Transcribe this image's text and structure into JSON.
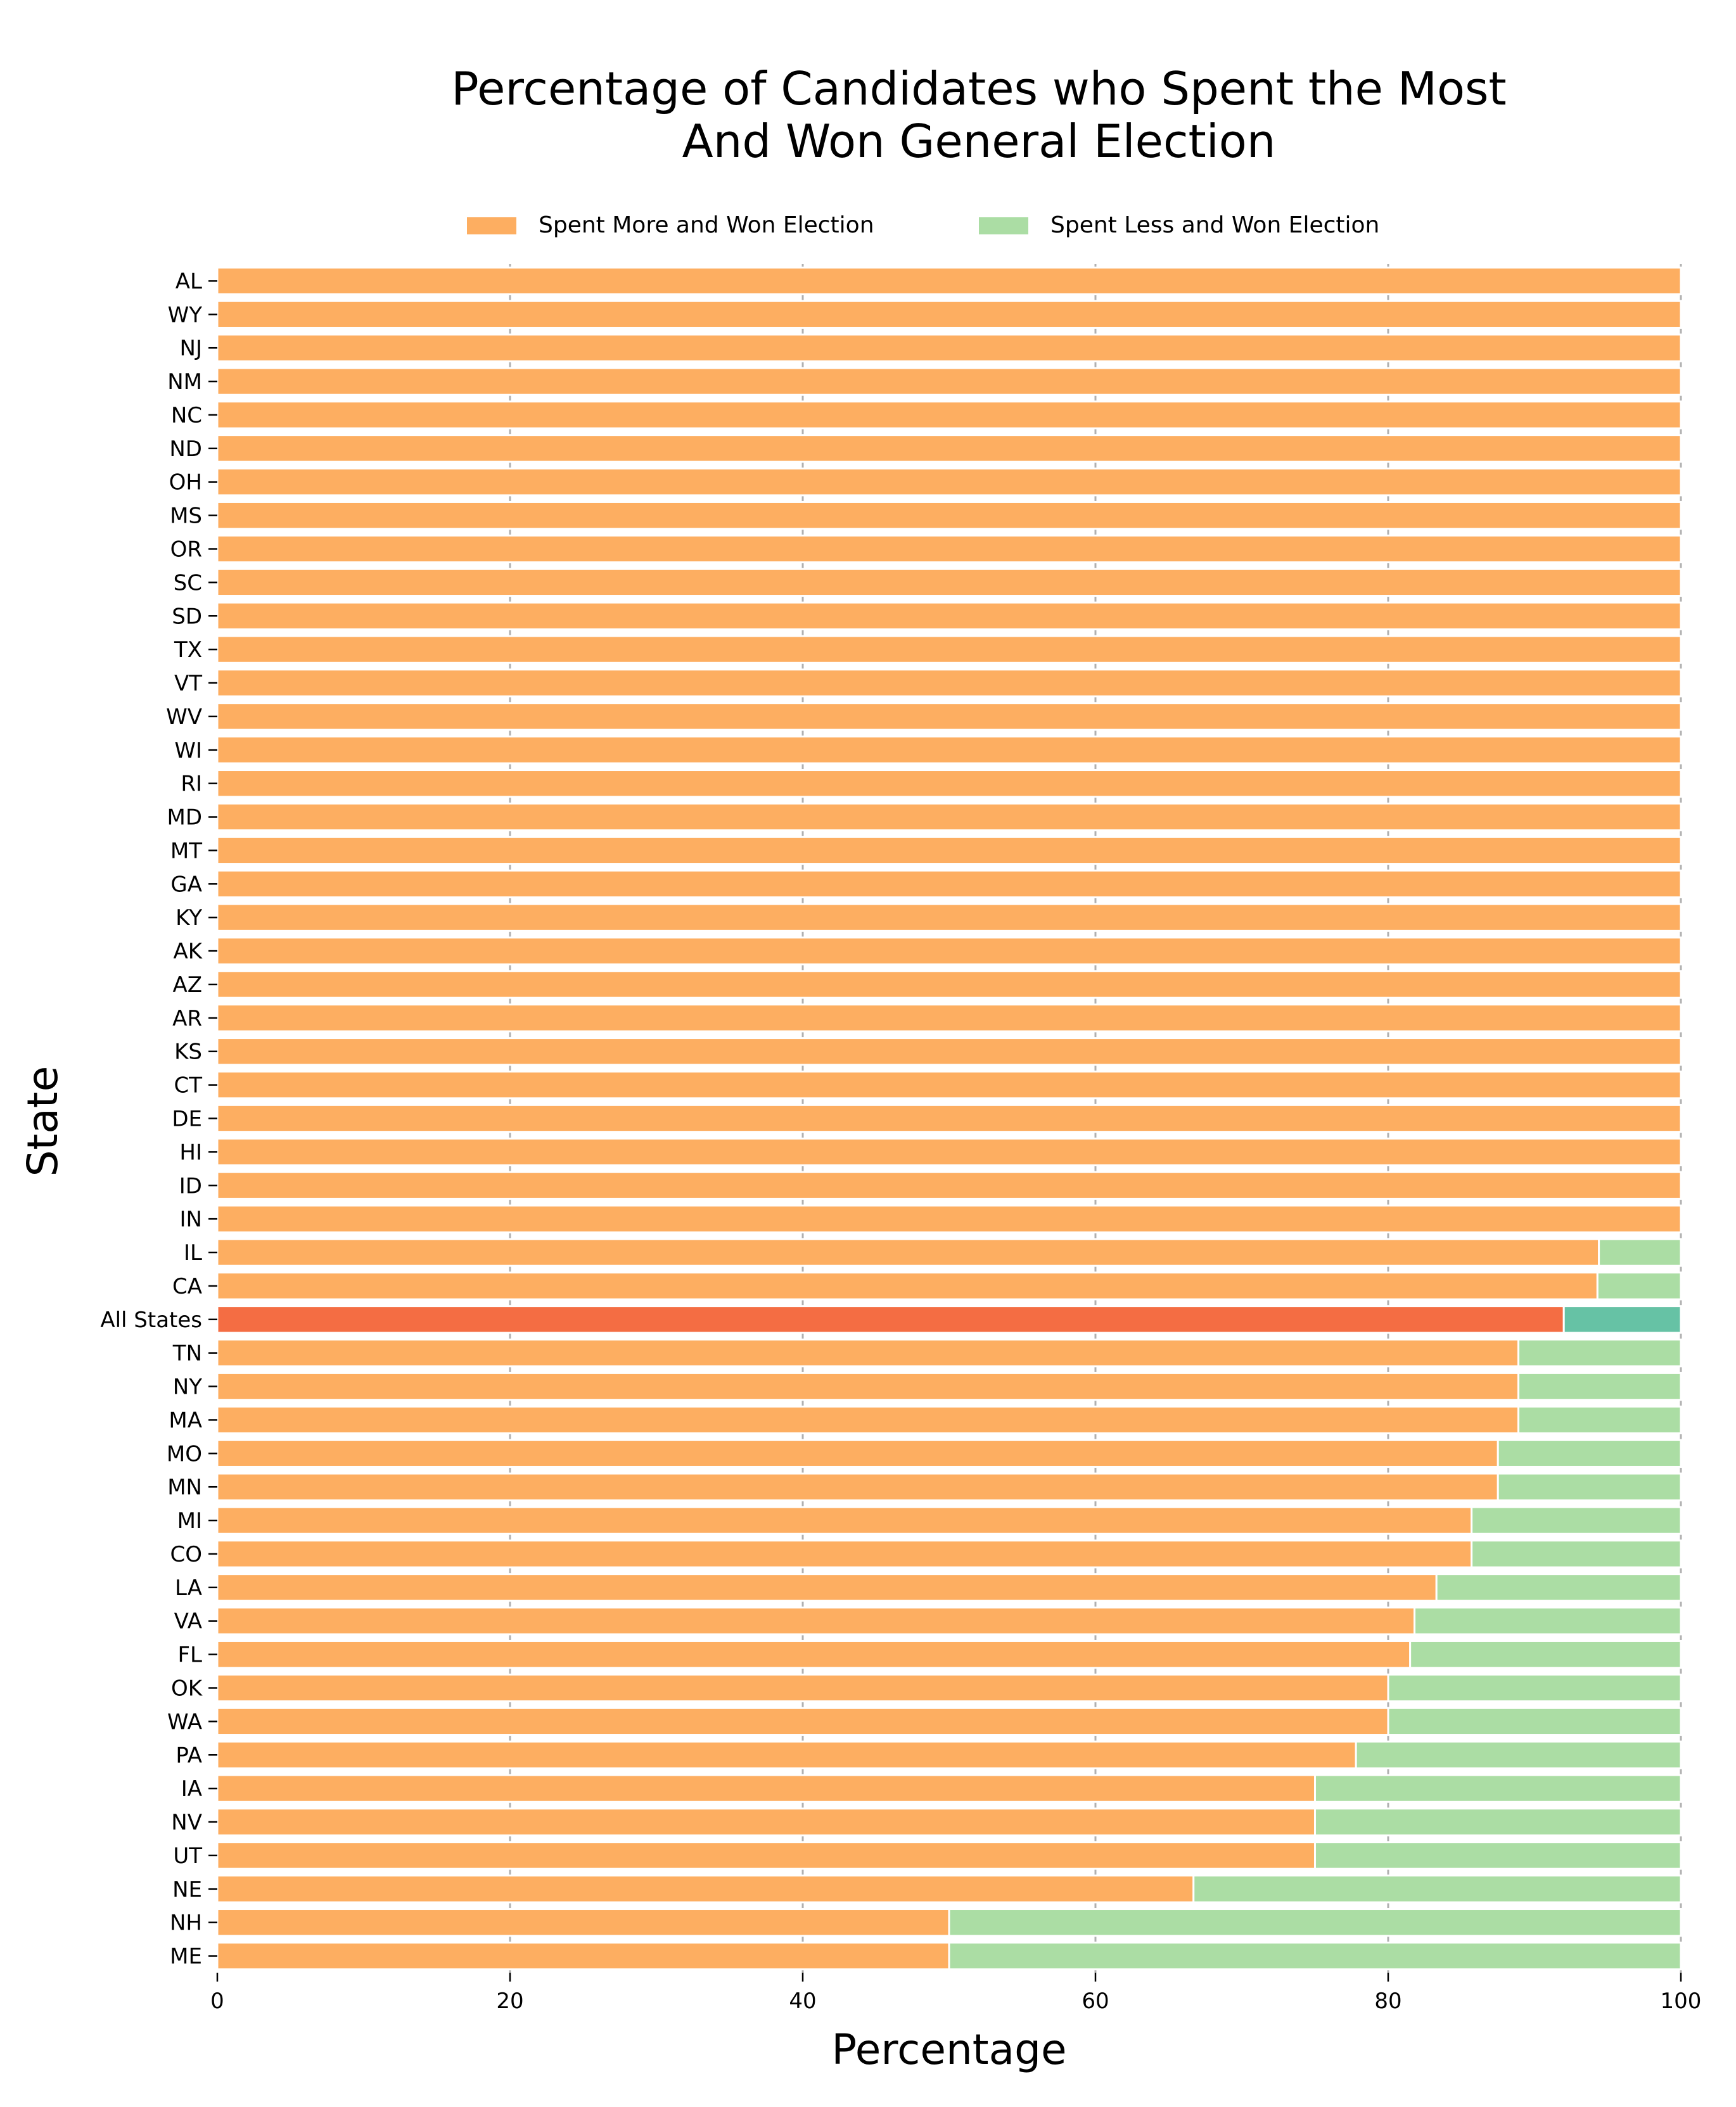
{
  "chart_data": {
    "type": "bar",
    "orientation": "horizontal",
    "stacked": true,
    "title": "Percentage of Candidates who Spent the Most\nAnd Won General Election",
    "title_lines": [
      "Percentage of Candidates who Spent the Most",
      "And Won General Election"
    ],
    "xlabel": "Percentage",
    "ylabel": "State",
    "xlim": [
      0,
      100
    ],
    "xticks": [
      0,
      20,
      40,
      60,
      80,
      100
    ],
    "grid": "vertical",
    "legend_position": "top",
    "categories": [
      "AL",
      "WY",
      "NJ",
      "NM",
      "NC",
      "ND",
      "OH",
      "MS",
      "OR",
      "SC",
      "SD",
      "TX",
      "VT",
      "WV",
      "WI",
      "RI",
      "MD",
      "MT",
      "GA",
      "KY",
      "AK",
      "AZ",
      "AR",
      "KS",
      "CT",
      "DE",
      "HI",
      "ID",
      "IN",
      "IL",
      "CA",
      "All States",
      "TN",
      "NY",
      "MA",
      "MO",
      "MN",
      "MI",
      "CO",
      "LA",
      "VA",
      "FL",
      "OK",
      "WA",
      "PA",
      "IA",
      "NV",
      "UT",
      "NE",
      "NH",
      "ME"
    ],
    "series": [
      {
        "name": "Spent More and Won Election",
        "color": "#fdae61",
        "highlight_color": "#f46d43",
        "values": [
          100,
          100,
          100,
          100,
          100,
          100,
          100,
          100,
          100,
          100,
          100,
          100,
          100,
          100,
          100,
          100,
          100,
          100,
          100,
          100,
          100,
          100,
          100,
          100,
          100,
          100,
          100,
          100,
          100,
          94.4,
          94.3,
          92.0,
          88.9,
          88.9,
          88.9,
          87.5,
          87.5,
          85.7,
          85.7,
          83.3,
          81.8,
          81.5,
          80,
          80,
          77.8,
          75,
          75,
          75,
          66.7,
          50,
          50
        ]
      },
      {
        "name": "Spent Less and Won Election",
        "color": "#abdda4",
        "highlight_color": "#66c2a5",
        "values": [
          0,
          0,
          0,
          0,
          0,
          0,
          0,
          0,
          0,
          0,
          0,
          0,
          0,
          0,
          0,
          0,
          0,
          0,
          0,
          0,
          0,
          0,
          0,
          0,
          0,
          0,
          0,
          0,
          0,
          5.6,
          5.7,
          8.0,
          11.1,
          11.1,
          11.1,
          12.5,
          12.5,
          14.3,
          14.3,
          16.7,
          18.2,
          18.5,
          20,
          20,
          22.2,
          25,
          25,
          25,
          33.3,
          50,
          50
        ]
      }
    ],
    "highlight_category": "All States",
    "gridline_color": "#b0b0b0"
  }
}
